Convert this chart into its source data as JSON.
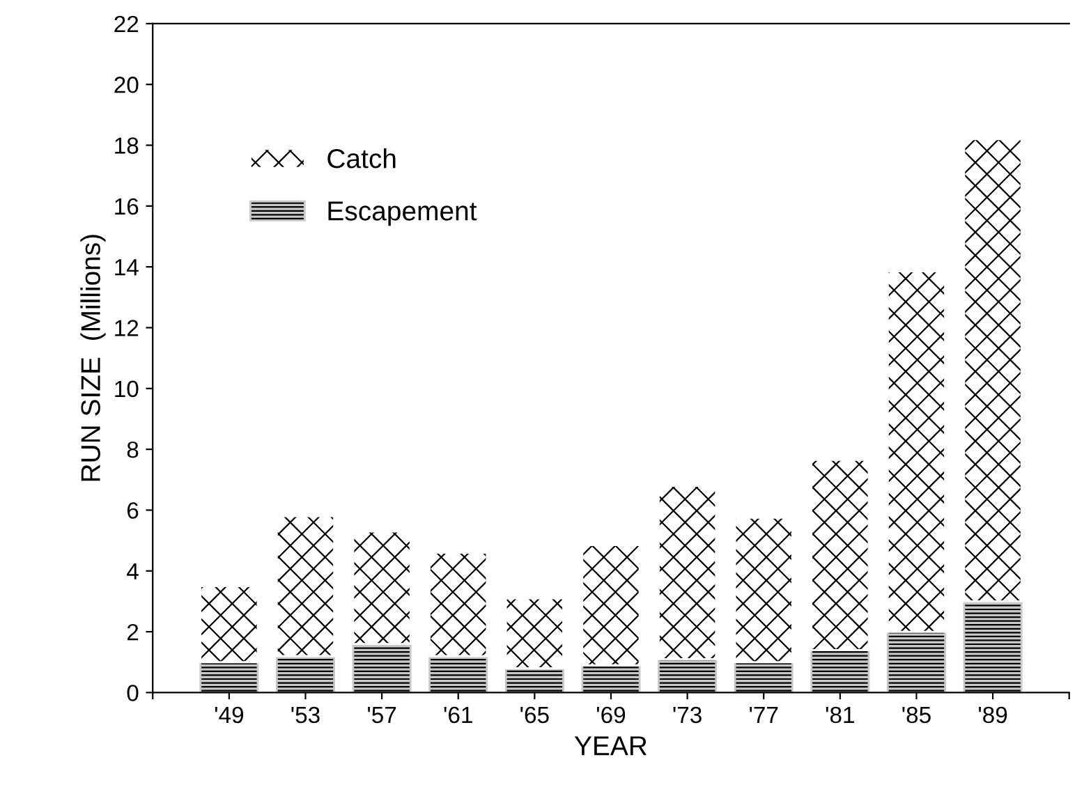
{
  "chart_data": {
    "type": "bar",
    "stacked": true,
    "xlabel": "YEAR",
    "ylabel": "RUN SIZE  (Millions)",
    "categories": [
      null,
      "'49",
      "'53",
      "'57",
      "'61",
      "'65",
      "'69",
      "'73",
      "'77",
      "'81",
      "'85",
      "'89",
      null
    ],
    "series": [
      {
        "name": "Escapement",
        "color": "#c8c8c8",
        "values": [
          null,
          1.0,
          1.2,
          1.6,
          1.2,
          0.8,
          0.9,
          1.1,
          1.0,
          1.4,
          2.0,
          3.0,
          null
        ]
      },
      {
        "name": "Catch",
        "color": "#ffffff",
        "values": [
          null,
          2.5,
          4.6,
          3.7,
          3.4,
          2.3,
          3.95,
          5.7,
          4.75,
          6.25,
          11.85,
          15.2,
          null
        ]
      }
    ],
    "ylim": [
      0,
      22
    ],
    "yticks": [
      0,
      2,
      4,
      6,
      8,
      10,
      12,
      14,
      16,
      18,
      20,
      22
    ],
    "grid": false,
    "legend": "top left"
  }
}
